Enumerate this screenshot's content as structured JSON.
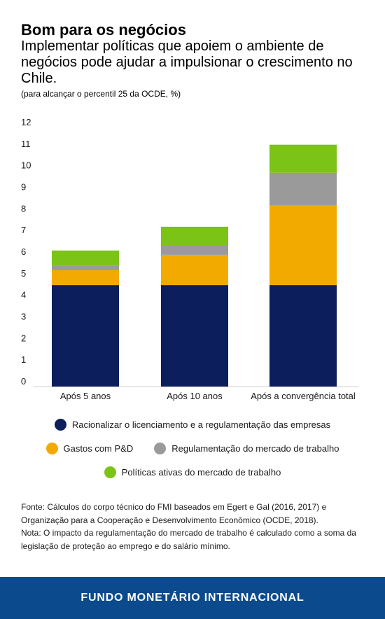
{
  "header": {
    "title": "Bom para os negócios",
    "subtitle": "Implementar políticas que apoiem o ambiente de negócios pode ajudar a impulsionar o crescimento no Chile.",
    "note": "(para alcançar o percentil 25 da OCDE, %)"
  },
  "chart_data": {
    "type": "bar",
    "stacked": true,
    "categories": [
      "Após 5 anos",
      "Após 10 anos",
      "Após a convergência total"
    ],
    "ylim": [
      0,
      12
    ],
    "yticks": [
      0,
      1,
      2,
      3,
      4,
      5,
      6,
      7,
      8,
      9,
      10,
      11,
      12
    ],
    "grid": false,
    "legend_position": "bottom",
    "series": [
      {
        "name": "Racionalizar o licenciamento e a regulamentação das empresas",
        "color": "#0c1f5c",
        "values": [
          4.7,
          4.7,
          4.7
        ]
      },
      {
        "name": "Gastos com P&D",
        "color": "#f2a900",
        "values": [
          0.7,
          1.4,
          3.7
        ]
      },
      {
        "name": "Regulamentação do mercado de trabalho",
        "color": "#9a9a9a",
        "values": [
          0.2,
          0.45,
          1.5
        ]
      },
      {
        "name": "Políticas ativas do mercado de trabalho",
        "color": "#7cc318",
        "values": [
          0.7,
          0.85,
          1.3
        ]
      }
    ]
  },
  "footer": {
    "source_1": "Fonte: Cálculos do corpo técnico do FMI baseados em Egert e Gal (2016, 2017) e Organização para a Cooperação e Desenvolvimento Econômico (OCDE, 2018).",
    "source_2": "Nota: O impacto da regulamentação do mercado de trabalho é calculado como a soma da legislação de proteção ao emprego e do salário mínimo."
  },
  "banner": {
    "text": "FUNDO MONETÁRIO INTERNACIONAL",
    "color": "#0a4a8d"
  }
}
